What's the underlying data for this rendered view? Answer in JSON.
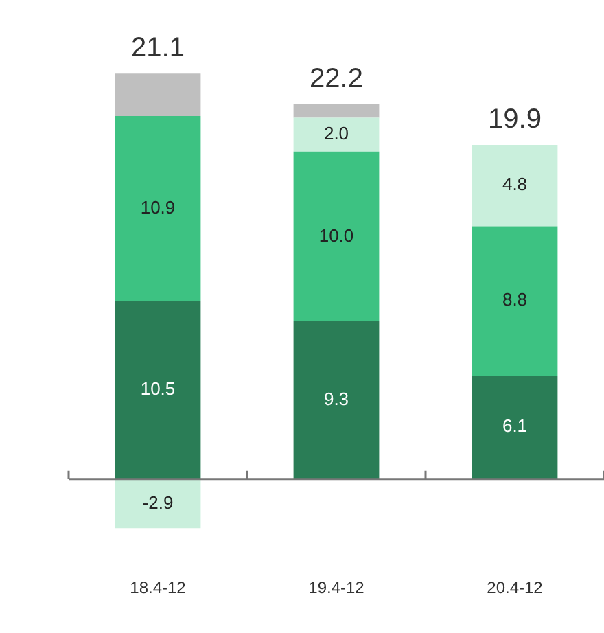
{
  "chart_data": {
    "type": "bar",
    "stacked": true,
    "categories": [
      "18.4-12",
      "19.4-12",
      "20.4-12"
    ],
    "series": [
      {
        "color": "#2a7d56",
        "values": [
          10.5,
          9.3,
          6.1
        ],
        "value_labels": [
          "10.5",
          "9.3",
          "6.1"
        ]
      },
      {
        "color": "#3dc282",
        "values": [
          10.9,
          10.0,
          8.8
        ],
        "value_labels": [
          "10.9",
          "10.0",
          "8.8"
        ]
      },
      {
        "color": "#c9efdc",
        "values": [
          -2.9,
          2.0,
          4.8
        ],
        "value_labels": [
          "-2.9",
          "2.0",
          "4.8"
        ]
      },
      {
        "color": "#bfbfbf",
        "values": [
          2.5,
          0.8,
          null
        ],
        "value_labels": [
          null,
          null,
          null
        ]
      }
    ],
    "totals": [
      "21.1",
      "22.2",
      "19.9"
    ],
    "grid": false,
    "legend": false,
    "tick_labels": "x"
  }
}
